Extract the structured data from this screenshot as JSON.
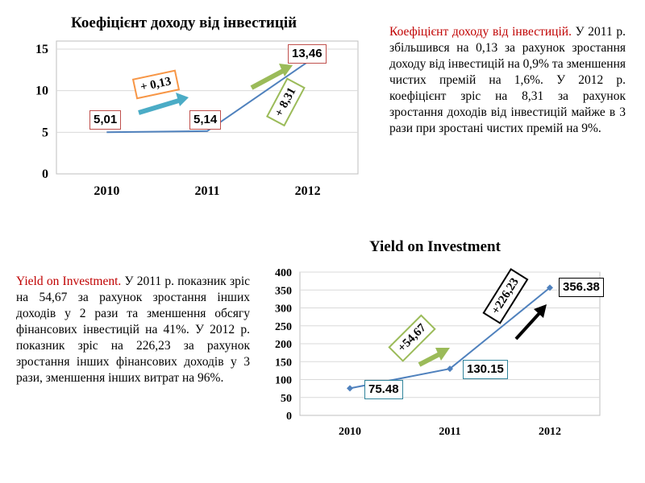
{
  "chart_data": [
    {
      "type": "line",
      "title": "Коефіцієнт доходу від інвестицій",
      "categories": [
        "2010",
        "2011",
        "2012"
      ],
      "values": [
        5.01,
        5.14,
        13.46
      ],
      "value_labels": [
        "5,01",
        "5,14",
        "13,46"
      ],
      "y_ticks": [
        0,
        5,
        10,
        15
      ],
      "ylim": [
        0,
        15
      ],
      "grid": true,
      "annotations": [
        "+ 0,13",
        "+ 8,31"
      ],
      "line_color": "#4f81bd",
      "annotation_colors": [
        "#f79646",
        "#9bbb59"
      ]
    },
    {
      "type": "line",
      "title": "Yield on Investment",
      "categories": [
        "2010",
        "2011",
        "2012"
      ],
      "values": [
        75.48,
        130.15,
        356.38
      ],
      "value_labels": [
        "75.48",
        "130.15",
        "356.38"
      ],
      "y_ticks": [
        0,
        50,
        100,
        150,
        200,
        250,
        300,
        350,
        400
      ],
      "ylim": [
        0,
        400
      ],
      "grid": true,
      "annotations": [
        "+54,67",
        "+226,23"
      ],
      "line_color": "#4f81bd",
      "annotation_colors": [
        "#9bbb59",
        "#000000"
      ]
    }
  ],
  "text1": {
    "lead": "Коефіцієнт доходу від інвестицій.",
    "body": " У 2011 р. збільшився на 0,13 за рахунок зростання доходу від інвестицій на 0,9% та зменшення чистих премій на 1,6%. У 2012 р. коефіцієнт зріс на 8,31 за рахунок зростання доходів від інвестицій майже в 3 рази при зростані  чистих премій на 9%."
  },
  "text2": {
    "lead": "Yield on Investment.",
    "body": " У 2011 р. показник зріс на 54,67 за рахунок зростання інших доходів у 2 рази та зменшення обсягу фінансових інвестицій на 41%. У 2012 р. показник зріс на 226,23 за рахунок зростання інших фінансових доходів у 3 рази, зменшення інших витрат на  96%."
  }
}
